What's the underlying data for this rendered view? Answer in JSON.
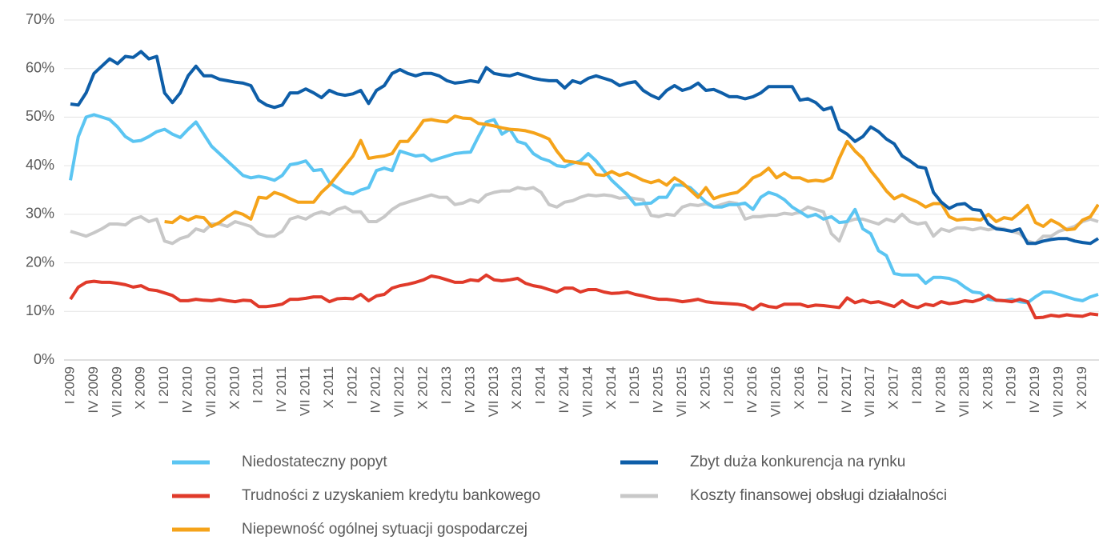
{
  "chart_data": {
    "type": "line",
    "categories": [
      "I 2009",
      null,
      null,
      "IV 2009",
      null,
      null,
      "VII 2009",
      null,
      null,
      "X 2009",
      null,
      null,
      "I 2010",
      null,
      null,
      "IV 2010",
      null,
      null,
      "VII 2010",
      null,
      null,
      "X 2010",
      null,
      null,
      "I 2011",
      null,
      null,
      "IV 2011",
      null,
      null,
      "VII 2011",
      null,
      null,
      "X 2011",
      null,
      null,
      "I 2012",
      null,
      null,
      "IV 2012",
      null,
      null,
      "VII 2012",
      null,
      null,
      "X 2012",
      null,
      null,
      "I 2013",
      null,
      null,
      "IV 2013",
      null,
      null,
      "VII 2013",
      null,
      null,
      "X 2013",
      null,
      null,
      "I 2014",
      null,
      null,
      "IV 2014",
      null,
      null,
      "VII 2014",
      null,
      null,
      "X 2014",
      null,
      null,
      "I 2015",
      null,
      null,
      "IV 2015",
      null,
      null,
      "VII 2015",
      null,
      null,
      "X 2015",
      null,
      null,
      "I 2016",
      null,
      null,
      "IV 2016",
      null,
      null,
      "VII 2016",
      null,
      null,
      "X 2016",
      null,
      null,
      "I 2017",
      null,
      null,
      "IV 2017",
      null,
      null,
      "VII 2017",
      null,
      null,
      "X 2017",
      null,
      null,
      "I 2018",
      null,
      null,
      "IV 2018",
      null,
      null,
      "VII 2018",
      null,
      null,
      "X 2018",
      null,
      null,
      "I 2019",
      null,
      null,
      "IV 2019",
      null,
      null,
      "VII 2019",
      null,
      null,
      "X 2019",
      null,
      null
    ],
    "ylim": [
      0,
      70
    ],
    "yticks": [
      {
        "value": 0,
        "label": "0%"
      },
      {
        "value": 10,
        "label": "10%"
      },
      {
        "value": 20,
        "label": "20%"
      },
      {
        "value": 30,
        "label": "30%"
      },
      {
        "value": 40,
        "label": "40%"
      },
      {
        "value": 50,
        "label": "50%"
      },
      {
        "value": 60,
        "label": "60%"
      },
      {
        "value": 70,
        "label": "70%"
      }
    ],
    "grid": true,
    "series": [
      {
        "name": "Niedostateczny popyt",
        "color": "#5bc5f2",
        "values": [
          37,
          46,
          50,
          50.5,
          50,
          49.5,
          48,
          46,
          45,
          45.2,
          46,
          47,
          47.5,
          46.5,
          45.8,
          47.5,
          49,
          46.5,
          44,
          42.5,
          41,
          39.5,
          38,
          37.5,
          37.8,
          37.5,
          37,
          38,
          40.2,
          40.5,
          41,
          39,
          39.2,
          36.5,
          35.5,
          34.5,
          34.2,
          35,
          35.5,
          39,
          39.5,
          39,
          43,
          42.5,
          42,
          42.2,
          41,
          41.5,
          42,
          42.5,
          42.7,
          42.8,
          46,
          49,
          49.5,
          46.5,
          47.5,
          45,
          44.5,
          42.5,
          41.5,
          41,
          40,
          39.8,
          40.5,
          41,
          42.5,
          41,
          39,
          37,
          35.5,
          34,
          32,
          32.2,
          32.3,
          33.5,
          33.5,
          36,
          36,
          35.5,
          34,
          32.5,
          31.5,
          31.5,
          32,
          32,
          32.3,
          31,
          33.5,
          34.5,
          34,
          33,
          31.5,
          30.5,
          29.5,
          30,
          29,
          29.5,
          28.3,
          28.5,
          31,
          27,
          26,
          22.5,
          21.5,
          17.8,
          17.5,
          17.5,
          17.5,
          15.8,
          17,
          17,
          16.8,
          16.2,
          15,
          14,
          13.8,
          12.5,
          12.3,
          12.2,
          12.5,
          12,
          11.8,
          13,
          14,
          14,
          13.5,
          13,
          12.5,
          12.2,
          13,
          13.5
        ]
      },
      {
        "name": "Zbyt duża konkurencja na rynku",
        "color": "#0e5ea8",
        "values": [
          52.7,
          52.5,
          55,
          59,
          60.5,
          62,
          61,
          62.5,
          62.3,
          63.5,
          62,
          62.5,
          55,
          53,
          55,
          58.5,
          60.5,
          58.5,
          58.5,
          57.8,
          57.5,
          57.2,
          57,
          56.5,
          53.5,
          52.5,
          52,
          52.5,
          55,
          55,
          55.8,
          55,
          54,
          55.5,
          54.8,
          54.5,
          54.8,
          55.5,
          52.8,
          55.5,
          56.5,
          59,
          59.8,
          59,
          58.5,
          59,
          59,
          58.5,
          57.5,
          57,
          57.2,
          57.5,
          57.2,
          60.2,
          59,
          58.7,
          58.5,
          59,
          58.5,
          58,
          57.7,
          57.5,
          57.5,
          56,
          57.5,
          57,
          58,
          58.5,
          58,
          57.5,
          56.5,
          57,
          57.3,
          55.5,
          54.5,
          53.8,
          55.5,
          56.5,
          55.5,
          56,
          57,
          55.5,
          55.7,
          55,
          54.2,
          54.2,
          53.8,
          54.2,
          55,
          56.3,
          56.3,
          56.3,
          56.3,
          53.5,
          53.8,
          53,
          51.5,
          52,
          47.5,
          46.5,
          45,
          46,
          48,
          47,
          45.5,
          44.5,
          42,
          41,
          39.8,
          39.5,
          34.5,
          32.5,
          31.2,
          32,
          32.2,
          31,
          30.8,
          28,
          27,
          26.8,
          26.5,
          27,
          24,
          24,
          24.5,
          24.8,
          25,
          25,
          24.5,
          24.2,
          24,
          25
        ]
      },
      {
        "name": "Trudności z uzyskaniem kredytu bankowego",
        "color": "#e03a2a",
        "values": [
          12.5,
          15,
          16,
          16.2,
          16,
          16,
          15.8,
          15.5,
          15,
          15.3,
          14.5,
          14.3,
          13.8,
          13.3,
          12.2,
          12.2,
          12.5,
          12.3,
          12.2,
          12.5,
          12.2,
          12,
          12.3,
          12.2,
          11,
          11,
          11.2,
          11.5,
          12.5,
          12.5,
          12.7,
          13,
          13,
          12,
          12.6,
          12.7,
          12.6,
          13.5,
          12.2,
          13.2,
          13.5,
          14.8,
          15.3,
          15.6,
          16,
          16.5,
          17.3,
          17,
          16.5,
          16,
          16,
          16.5,
          16.3,
          17.5,
          16.5,
          16.3,
          16.5,
          16.8,
          15.8,
          15.3,
          15,
          14.5,
          14,
          14.8,
          14.8,
          14,
          14.5,
          14.5,
          14,
          13.7,
          13.8,
          14,
          13.5,
          13.2,
          12.8,
          12.5,
          12.5,
          12.3,
          12,
          12.2,
          12.5,
          12,
          11.8,
          11.7,
          11.6,
          11.5,
          11.2,
          10.4,
          11.5,
          11,
          10.8,
          11.5,
          11.5,
          11.5,
          11,
          11.3,
          11.2,
          11,
          10.8,
          12.8,
          11.8,
          12.3,
          11.8,
          12,
          11.5,
          11,
          12.2,
          11.2,
          10.8,
          11.5,
          11.2,
          12,
          11.6,
          11.8,
          12.2,
          12,
          12.5,
          13.3,
          12.3,
          12.2,
          12,
          12.5,
          12,
          8.7,
          8.8,
          9.2,
          9,
          9.3,
          9.1,
          9,
          9.5,
          9.3
        ]
      },
      {
        "name": "Koszty finansowej obsługi działalności",
        "color": "#c8c8c8",
        "values": [
          26.5,
          26,
          25.5,
          26.2,
          27,
          28,
          28,
          27.8,
          29,
          29.5,
          28.5,
          29,
          24.5,
          24,
          25,
          25.5,
          27,
          26.5,
          28,
          28,
          27.5,
          28.5,
          28,
          27.5,
          26,
          25.5,
          25.5,
          26.5,
          29,
          29.5,
          29,
          30,
          30.5,
          30,
          31,
          31.5,
          30.5,
          30.5,
          28.5,
          28.5,
          29.5,
          31,
          32,
          32.5,
          33,
          33.5,
          34,
          33.5,
          33.5,
          32,
          32.3,
          33,
          32.5,
          34,
          34.5,
          34.8,
          34.8,
          35.5,
          35.2,
          35.5,
          34.5,
          32,
          31.5,
          32.5,
          32.8,
          33.5,
          34,
          33.8,
          34,
          33.8,
          33.3,
          33.5,
          33.2,
          33,
          29.8,
          29.5,
          30,
          29.8,
          31.5,
          32,
          31.8,
          32.2,
          31.5,
          32,
          32.5,
          32.2,
          29,
          29.5,
          29.5,
          29.8,
          29.8,
          30.2,
          30,
          30.5,
          31.5,
          31,
          30.5,
          26,
          24.5,
          28.5,
          29,
          29,
          28.5,
          28,
          29,
          28.5,
          30,
          28.5,
          28,
          28.3,
          25.5,
          27,
          26.5,
          27.2,
          27.2,
          26.8,
          27.2,
          26.8,
          27.2,
          27,
          26.5,
          26,
          24.5,
          24,
          25.5,
          25.5,
          26.5,
          27,
          27.5,
          28.5,
          29,
          28.5
        ]
      },
      {
        "name": "Niepewność ogólnej sytuacji gospodarczej",
        "color": "#f5a31a",
        "values": [
          null,
          null,
          null,
          null,
          null,
          null,
          null,
          null,
          null,
          null,
          null,
          null,
          28.5,
          28.3,
          29.5,
          28.8,
          29.5,
          29.3,
          27.5,
          28.3,
          29.5,
          30.5,
          30,
          29,
          33.5,
          33.3,
          34.5,
          34,
          33.2,
          32.5,
          32.5,
          32.5,
          34.5,
          36,
          38,
          40,
          42,
          45.2,
          41.5,
          41.8,
          42,
          42.5,
          45,
          45,
          47,
          49.3,
          49.5,
          49.2,
          49,
          50.2,
          49.8,
          49.7,
          48.7,
          48.5,
          48.2,
          47.8,
          47.5,
          47.4,
          47.2,
          46.8,
          46.2,
          45.5,
          43,
          41,
          40.8,
          40.5,
          40.3,
          38.2,
          38,
          38.8,
          38,
          38.5,
          37.8,
          37,
          36.5,
          37,
          36,
          37.5,
          36.5,
          35,
          33.5,
          35.5,
          33.2,
          33.8,
          34.2,
          34.5,
          35.8,
          37.5,
          38.2,
          39.5,
          37.5,
          38.5,
          37.5,
          37.5,
          36.8,
          37,
          36.8,
          37.5,
          41.5,
          45,
          43,
          41.5,
          39,
          37,
          34.8,
          33.2,
          34,
          33.2,
          32.5,
          31.5,
          32.2,
          32.2,
          29.5,
          28.8,
          29,
          29,
          28.8,
          30,
          28.5,
          29.3,
          29,
          30.3,
          31.8,
          28.3,
          27.5,
          28.8,
          28,
          26.8,
          27,
          28.8,
          29.5,
          32
        ]
      }
    ]
  }
}
